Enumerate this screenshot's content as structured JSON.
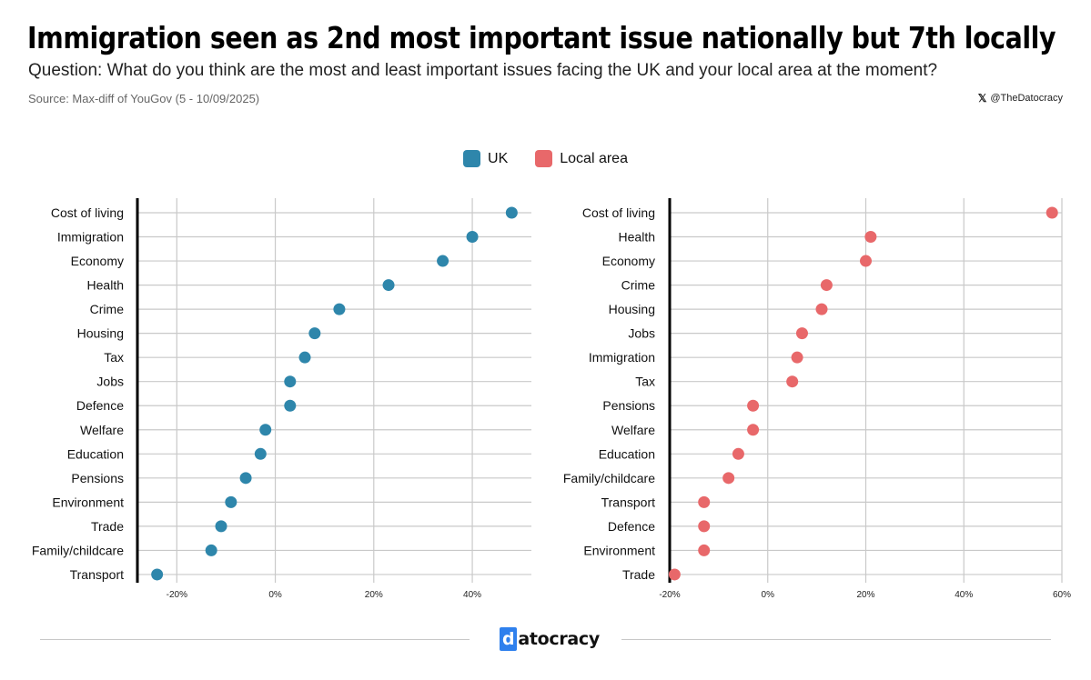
{
  "header": {
    "title": "Immigration seen as 2nd most important issue nationally but 7th locally",
    "subtitle": "Question: What do you think are the most and least important issues facing the UK and your local area at the moment?",
    "source": "Source: Max-diff of YouGov (5 - 10/09/2025)",
    "handle": "@TheDatocracy",
    "handle_icon": "x-logo-icon"
  },
  "legend": [
    {
      "label": "UK",
      "color": "#2e86ab"
    },
    {
      "label": "Local area",
      "color": "#e8686a"
    }
  ],
  "logo": {
    "highlight": "d",
    "rest": "atocracy",
    "color": "#2f80ed"
  },
  "chart_data": [
    {
      "type": "scatter",
      "name": "UK",
      "color": "#2e86ab",
      "categories": [
        "Cost of living",
        "Immigration",
        "Economy",
        "Health",
        "Crime",
        "Housing",
        "Tax",
        "Jobs",
        "Defence",
        "Welfare",
        "Education",
        "Pensions",
        "Environment",
        "Trade",
        "Family/childcare",
        "Transport"
      ],
      "values": [
        48,
        40,
        34,
        23,
        13,
        8,
        6,
        3,
        3,
        -2,
        -3,
        -6,
        -9,
        -11,
        -13,
        -24
      ],
      "xlim": [
        -28,
        52
      ],
      "xticks": [
        -20,
        0,
        20,
        40
      ],
      "xtick_labels": [
        "-20%",
        "0%",
        "20%",
        "40%"
      ],
      "grid": true
    },
    {
      "type": "scatter",
      "name": "Local area",
      "color": "#e8686a",
      "categories": [
        "Cost of living",
        "Health",
        "Economy",
        "Crime",
        "Housing",
        "Jobs",
        "Immigration",
        "Tax",
        "Pensions",
        "Welfare",
        "Education",
        "Family/childcare",
        "Transport",
        "Defence",
        "Environment",
        "Trade"
      ],
      "values": [
        58,
        21,
        20,
        12,
        11,
        7,
        6,
        5,
        -3,
        -3,
        -6,
        -8,
        -13,
        -13,
        -13,
        -19
      ],
      "xlim": [
        -20,
        60
      ],
      "xticks": [
        -20,
        0,
        20,
        40,
        60
      ],
      "xtick_labels": [
        "-20%",
        "0%",
        "20%",
        "40%",
        "60%"
      ],
      "grid": true
    }
  ]
}
